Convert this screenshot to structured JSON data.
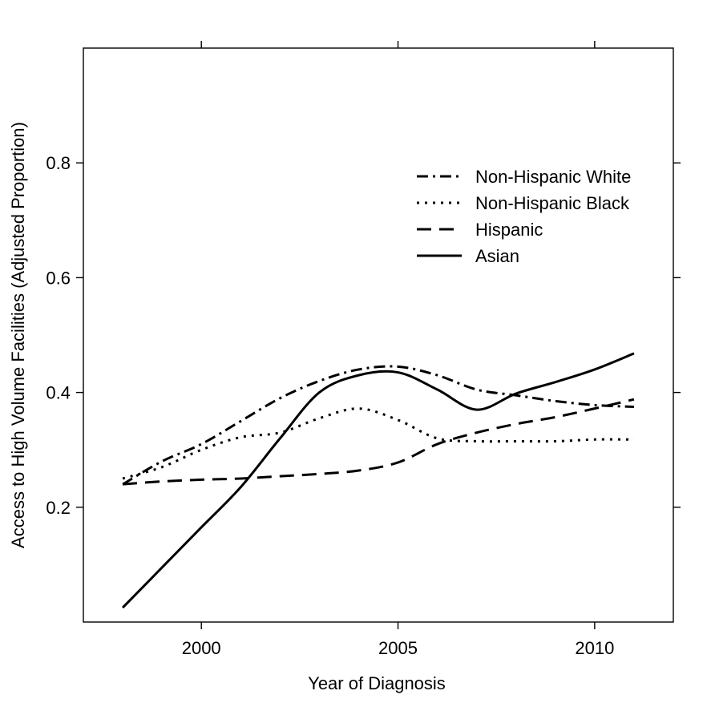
{
  "chart_data": {
    "type": "line",
    "xlabel": "Year of Diagnosis",
    "ylabel": "Access to High Volume Facilities (Adjusted Proportion)",
    "xlim": [
      1997.0,
      2012.0
    ],
    "ylim": [
      0.0,
      1.0
    ],
    "x_ticks": [
      2000,
      2005,
      2010
    ],
    "y_ticks": [
      0.2,
      0.4,
      0.6,
      0.8
    ],
    "grid": false,
    "legend_position": "top-right",
    "series": [
      {
        "name": "Non-Hispanic White",
        "dash": "dot-dash",
        "x": [
          1998,
          1999,
          2000,
          2001,
          2002,
          2003,
          2004,
          2005,
          2006,
          2007,
          2008,
          2009,
          2010,
          2011
        ],
        "y": [
          0.24,
          0.28,
          0.31,
          0.35,
          0.39,
          0.42,
          0.44,
          0.445,
          0.43,
          0.405,
          0.395,
          0.385,
          0.378,
          0.375
        ]
      },
      {
        "name": "Non-Hispanic Black",
        "dash": "dotted",
        "x": [
          1998,
          1999,
          2000,
          2001,
          2002,
          2003,
          2004,
          2005,
          2006,
          2007,
          2008,
          2009,
          2010,
          2011
        ],
        "y": [
          0.25,
          0.27,
          0.3,
          0.322,
          0.33,
          0.355,
          0.372,
          0.352,
          0.32,
          0.315,
          0.315,
          0.315,
          0.318,
          0.318
        ]
      },
      {
        "name": "Hispanic",
        "dash": "dashed",
        "x": [
          1998,
          1999,
          2000,
          2001,
          2002,
          2003,
          2004,
          2005,
          2006,
          2007,
          2008,
          2009,
          2010,
          2011
        ],
        "y": [
          0.24,
          0.245,
          0.248,
          0.25,
          0.254,
          0.258,
          0.264,
          0.278,
          0.31,
          0.33,
          0.345,
          0.357,
          0.372,
          0.388
        ]
      },
      {
        "name": "Asian",
        "dash": "solid",
        "x": [
          1998,
          1999,
          2000,
          2001,
          2002,
          2003,
          2004,
          2005,
          2006,
          2007,
          2008,
          2009,
          2010,
          2011
        ],
        "y": [
          0.025,
          0.095,
          0.165,
          0.235,
          0.32,
          0.4,
          0.43,
          0.435,
          0.405,
          0.37,
          0.398,
          0.418,
          0.44,
          0.468
        ]
      }
    ]
  }
}
